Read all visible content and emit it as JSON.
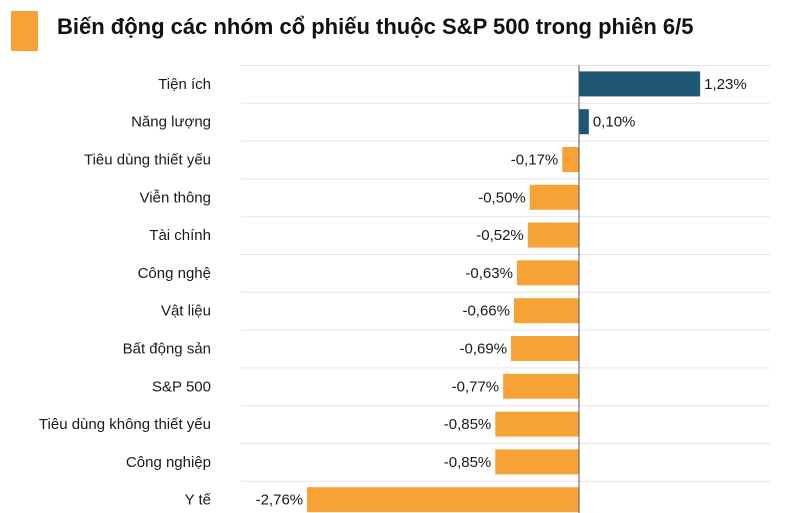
{
  "title": "Biến động các nhóm cổ phiếu thuộc S&P 500 trong phiên 6/5",
  "colors": {
    "accent": "#F7A235",
    "positive": "#1F5673",
    "negative": "#F7A235",
    "grid": "#E5E5E5",
    "zero_line": "#555555"
  },
  "chart_data": {
    "type": "bar",
    "orientation": "horizontal",
    "title": "Biến động các nhóm cổ phiếu thuộc S&P 500 trong phiên 6/5",
    "unit": "%",
    "categories": [
      "Tiện ích",
      "Năng lượng",
      "Tiêu dùng thiết yếu",
      "Viễn thông",
      "Tài chính",
      "Công nghệ",
      "Vật liệu",
      "Bất động sản",
      "S&P 500",
      "Tiêu dùng không thiết yếu",
      "Công nghiệp",
      "Y tế"
    ],
    "values": [
      1.23,
      0.1,
      -0.17,
      -0.5,
      -0.52,
      -0.63,
      -0.66,
      -0.69,
      -0.77,
      -0.85,
      -0.85,
      -2.76
    ],
    "value_labels": [
      "1,23%",
      "0,10%",
      "-0,17%",
      "-0,50%",
      "-0,52%",
      "-0,63%",
      "-0,66%",
      "-0,69%",
      "-0,77%",
      "-0,85%",
      "-0,85%",
      "-2,76%"
    ],
    "xlim": [
      -2.76,
      1.23
    ],
    "grid": true,
    "legend": "none"
  }
}
